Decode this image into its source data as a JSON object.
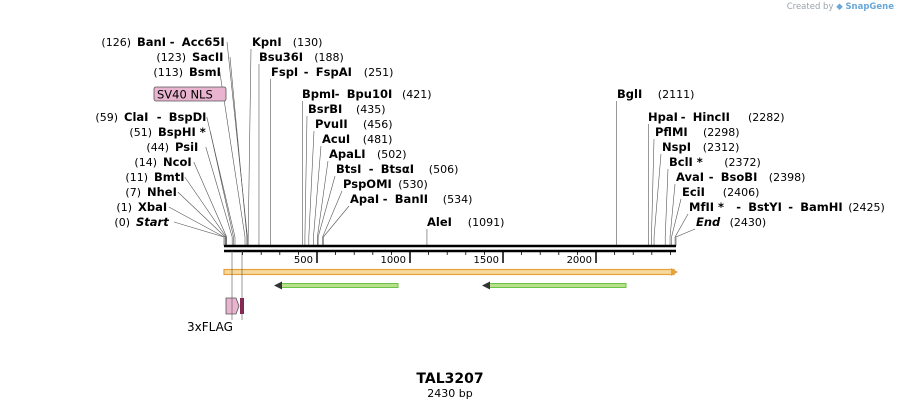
{
  "credit": {
    "prefix": "Created by",
    "logo": "SnapGene"
  },
  "plasmid": {
    "name": "TAL3207",
    "size_label": "2430 bp",
    "length": 2430
  },
  "ruler": {
    "ticks": [
      "500",
      "1000",
      "1500",
      "2000"
    ],
    "tick_positions": [
      500,
      1000,
      1500,
      2000
    ]
  },
  "sites": [
    {
      "names": [
        "BanI",
        "Acc65I"
      ],
      "pos": 126,
      "pos_label": "(126)"
    },
    {
      "names": [
        "KpnI"
      ],
      "pos": 130,
      "pos_label": "(130)"
    },
    {
      "names": [
        "SacII"
      ],
      "pos": 123,
      "pos_label": "(123)"
    },
    {
      "names": [
        "Bsu36I"
      ],
      "pos": 188,
      "pos_label": "(188)"
    },
    {
      "names": [
        "BsmI"
      ],
      "pos": 113,
      "pos_label": "(113)"
    },
    {
      "names": [
        "FspI",
        "FspAI"
      ],
      "pos": 251,
      "pos_label": "(251)"
    },
    {
      "names": [
        "BpmI",
        "Bpu10I"
      ],
      "pos": 421,
      "pos_label": "(421)"
    },
    {
      "names": [
        "BglI"
      ],
      "pos": 2111,
      "pos_label": "(2111)"
    },
    {
      "names": [
        "BsrBI"
      ],
      "pos": 435,
      "pos_label": "(435)"
    },
    {
      "names": [
        "ClaI",
        "BspDI"
      ],
      "pos": 59,
      "pos_label": "(59)"
    },
    {
      "names": [
        "HpaI",
        "HincII"
      ],
      "pos": 2282,
      "pos_label": "(2282)"
    },
    {
      "names": [
        "PvuII"
      ],
      "pos": 456,
      "pos_label": "(456)"
    },
    {
      "names": [
        "BspHI *"
      ],
      "pos": 51,
      "pos_label": "(51)"
    },
    {
      "names": [
        "PflMI"
      ],
      "pos": 2298,
      "pos_label": "(2298)"
    },
    {
      "names": [
        "AcuI"
      ],
      "pos": 481,
      "pos_label": "(481)"
    },
    {
      "names": [
        "PsiI"
      ],
      "pos": 44,
      "pos_label": "(44)"
    },
    {
      "names": [
        "NspI"
      ],
      "pos": 2312,
      "pos_label": "(2312)"
    },
    {
      "names": [
        "ApaLI"
      ],
      "pos": 502,
      "pos_label": "(502)"
    },
    {
      "names": [
        "NcoI"
      ],
      "pos": 14,
      "pos_label": "(14)"
    },
    {
      "names": [
        "BclI *"
      ],
      "pos": 2372,
      "pos_label": "(2372)"
    },
    {
      "names": [
        "BtsI",
        "BtsαI"
      ],
      "pos": 506,
      "pos_label": "(506)"
    },
    {
      "names": [
        "BmtI"
      ],
      "pos": 11,
      "pos_label": "(11)"
    },
    {
      "names": [
        "AvaI",
        "BsoBI"
      ],
      "pos": 2398,
      "pos_label": "(2398)"
    },
    {
      "names": [
        "PspOMI"
      ],
      "pos": 530,
      "pos_label": "(530)"
    },
    {
      "names": [
        "NheI"
      ],
      "pos": 7,
      "pos_label": "(7)"
    },
    {
      "names": [
        "EciI"
      ],
      "pos": 2406,
      "pos_label": "(2406)"
    },
    {
      "names": [
        "ApaI",
        "BanII"
      ],
      "pos": 534,
      "pos_label": "(534)"
    },
    {
      "names": [
        "XbaI"
      ],
      "pos": 1,
      "pos_label": "(1)"
    },
    {
      "names": [
        "MfII *",
        "BstYI",
        "BamHI"
      ],
      "pos": 2425,
      "pos_label": "(2425)"
    },
    {
      "names": [
        "Start"
      ],
      "pos": 0,
      "pos_label": "(0)"
    },
    {
      "names": [
        "AleI"
      ],
      "pos": 1091,
      "pos_label": "(1091)"
    },
    {
      "names": [
        "End"
      ],
      "pos": 2430,
      "pos_label": "(2430)"
    }
  ],
  "features": [
    {
      "name": "SV40 NLS",
      "label": "SV40 NLS",
      "color": "#e8b4cf"
    },
    {
      "name": "3xFLAG",
      "label": "3xFLAG",
      "color": "#cc88aa"
    }
  ],
  "colors": {
    "backbone": "#000000",
    "orf_outline": "#e6a23c",
    "orf_fill": "#f7d89a",
    "green_arrow": "#6cc24a",
    "feature_pink": "#e8b4cf",
    "feature_dark": "#8b2252",
    "leader_line": "#555555",
    "credit_text": "#9aa3ad"
  }
}
